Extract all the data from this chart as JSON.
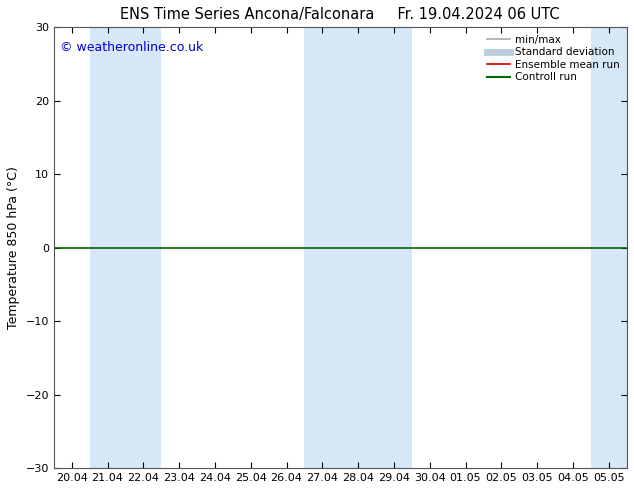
{
  "title": "ENS Time Series Ancona/Falconara",
  "title2": "Fr. 19.04.2024 06 UTC",
  "ylabel": "Temperature 850 hPa (°C)",
  "watermark": "© weatheronline.co.uk",
  "ylim": [
    -30,
    30
  ],
  "yticks": [
    -30,
    -20,
    -10,
    0,
    10,
    20,
    30
  ],
  "xlabels": [
    "20.04",
    "21.04",
    "22.04",
    "23.04",
    "24.04",
    "25.04",
    "26.04",
    "27.04",
    "28.04",
    "29.04",
    "30.04",
    "01.05",
    "02.05",
    "03.05",
    "04.05",
    "05.05"
  ],
  "background_color": "#ffffff",
  "plot_bg_color": "#ffffff",
  "shaded_color": "#d6e8f7",
  "shaded_indices": [
    1,
    2,
    7,
    8,
    9,
    15
  ],
  "zero_line_color": "#006600",
  "legend_items": [
    {
      "label": "min/max",
      "color": "#aaaaaa",
      "lw": 1.2
    },
    {
      "label": "Standard deviation",
      "color": "#bbccdd",
      "lw": 5
    },
    {
      "label": "Ensemble mean run",
      "color": "#cc0000",
      "lw": 1.2
    },
    {
      "label": "Controll run",
      "color": "#006600",
      "lw": 1.5
    }
  ],
  "title_fontsize": 10.5,
  "tick_fontsize": 8,
  "ylabel_fontsize": 9,
  "watermark_fontsize": 9,
  "watermark_color": "#0000cc"
}
